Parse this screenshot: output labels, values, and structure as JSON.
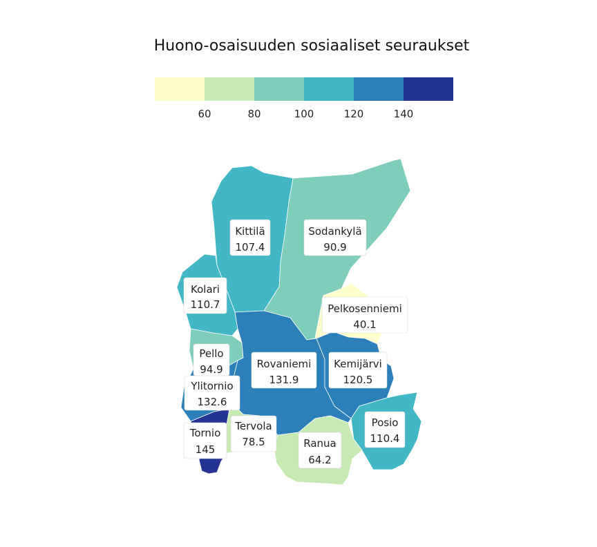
{
  "title": "Huono-osaisuuden sosiaaliset seuraukset",
  "legend": {
    "bins": [
      {
        "color": "#ffffcc"
      },
      {
        "color": "#c7e9b4"
      },
      {
        "color": "#7fcdbb"
      },
      {
        "color": "#41b6c4"
      },
      {
        "color": "#2c7fb8"
      },
      {
        "color": "#253494"
      }
    ],
    "ticks": [
      "60",
      "80",
      "100",
      "120",
      "140"
    ]
  },
  "regions": [
    {
      "name": "Kittilä",
      "value": "107.4",
      "color": "#41b6c4"
    },
    {
      "name": "Sodankylä",
      "value": "90.9",
      "color": "#7fcdbb"
    },
    {
      "name": "Kolari",
      "value": "110.7",
      "color": "#41b6c4"
    },
    {
      "name": "Pelkosenniemi",
      "value": "40.1",
      "color": "#ffffcc"
    },
    {
      "name": "Pello",
      "value": "94.9",
      "color": "#7fcdbb"
    },
    {
      "name": "Rovaniemi",
      "value": "131.9",
      "color": "#2c7fb8"
    },
    {
      "name": "Kemijärvi",
      "value": "120.5",
      "color": "#2c7fb8"
    },
    {
      "name": "Ylitornio",
      "value": "132.6",
      "color": "#2c7fb8"
    },
    {
      "name": "Tervola",
      "value": "78.5",
      "color": "#c7e9b4"
    },
    {
      "name": "Posio",
      "value": "110.4",
      "color": "#41b6c4"
    },
    {
      "name": "Ranua",
      "value": "64.2",
      "color": "#c7e9b4"
    },
    {
      "name": "Tornio",
      "value": "145",
      "color": "#253494"
    }
  ]
}
